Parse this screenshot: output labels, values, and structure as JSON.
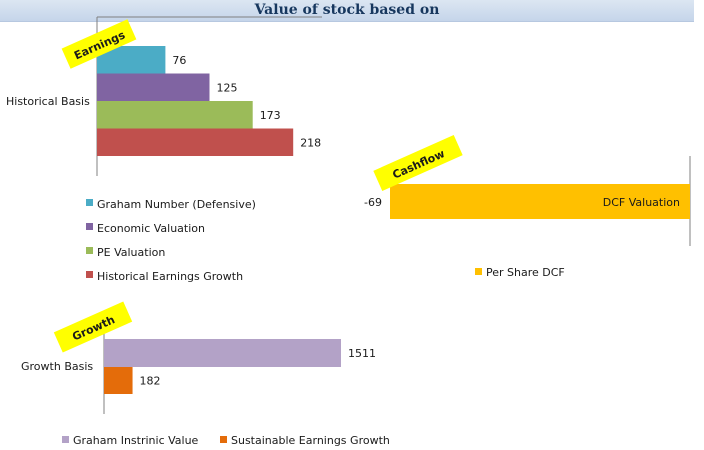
{
  "page": {
    "title": "Value of stock based on"
  },
  "chart_data": [
    {
      "type": "bar",
      "orientation": "horizontal",
      "tag": "Earnings",
      "categories": [
        "Historical Basis"
      ],
      "series": [
        {
          "name": "Graham Number (Defensive)",
          "values": [
            76
          ],
          "color": "#4bacc6"
        },
        {
          "name": "Economic Valuation",
          "values": [
            125
          ],
          "color": "#8064a2"
        },
        {
          "name": "PE Valuation",
          "values": [
            173
          ],
          "color": "#9bbb59"
        },
        {
          "name": "Historical Earnings Growth",
          "values": [
            218
          ],
          "color": "#c0504d"
        }
      ],
      "legend": "bottom",
      "grid": false
    },
    {
      "type": "bar",
      "orientation": "horizontal",
      "tag": "Cashflow",
      "categories": [
        "DCF Valuation"
      ],
      "series": [
        {
          "name": "Per Share DCF",
          "values": [
            -69
          ],
          "color": "#ffc000"
        }
      ],
      "legend": "bottom",
      "grid": false
    },
    {
      "type": "bar",
      "orientation": "horizontal",
      "tag": "Growth",
      "categories": [
        "Growth Basis"
      ],
      "series": [
        {
          "name": "Graham Instrinic Value",
          "values": [
            1511
          ],
          "color": "#b3a2c7"
        },
        {
          "name": "Sustainable Earnings Growth",
          "values": [
            182
          ],
          "color": "#e46c0a"
        }
      ],
      "legend": "bottom",
      "grid": false
    }
  ]
}
